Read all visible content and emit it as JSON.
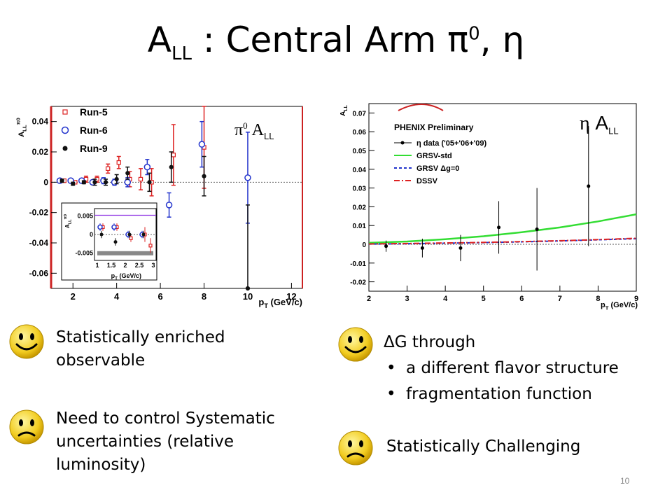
{
  "slide": {
    "title_main": "A",
    "title_sub": "LL",
    "title_rest": " : Central Arm π",
    "title_sup": "0",
    "title_end": ", η",
    "page_number": "10"
  },
  "colors": {
    "run5": "#dd2222",
    "run6": "#2233cc",
    "run9": "#111111",
    "grsv_std": "#33dd33",
    "grsv_dg0": "#2233cc",
    "dssv": "#dd2222",
    "frame_left_axis": "#cc2222"
  },
  "left_overlay": {
    "symbol": "π",
    "sup": "0",
    "label": " A",
    "sub": "LL"
  },
  "right_overlay": {
    "symbol": "η",
    "label": " A",
    "sub": "LL"
  },
  "chart_data": [
    {
      "type": "scatter",
      "ylabel": "A_LL^π0",
      "xlabel": "p_T (GeV/c)",
      "xlim": [
        1,
        12.5
      ],
      "ylim": [
        -0.07,
        0.05
      ],
      "xticks": [
        2,
        4,
        6,
        8,
        10,
        12
      ],
      "yticks": [
        -0.06,
        -0.04,
        -0.02,
        0,
        0.02,
        0.04
      ],
      "ytick_labels": [
        "-0.06",
        "-0.04",
        "-0.02",
        "0",
        "0.02",
        "0.04"
      ],
      "legend": [
        "Run-5",
        "Run-6",
        "Run-9"
      ],
      "series": [
        {
          "name": "Run-5",
          "marker": "open-square",
          "x": [
            1.6,
            2.1,
            2.6,
            3.1,
            3.6,
            4.1,
            4.6,
            5.1,
            5.6,
            6.6,
            8.0
          ],
          "y": [
            0.001,
            0.0,
            0.002,
            0.002,
            0.009,
            0.013,
            0.002,
            0.002,
            0.0,
            0.018,
            0.023
          ],
          "err": [
            0.001,
            0.001,
            0.002,
            0.002,
            0.003,
            0.004,
            0.005,
            0.007,
            0.009,
            0.02,
            0.027
          ]
        },
        {
          "name": "Run-6",
          "marker": "open-circle",
          "x": [
            1.4,
            1.9,
            2.4,
            2.9,
            3.4,
            3.9,
            4.5,
            5.4,
            6.4,
            7.9,
            10.0
          ],
          "y": [
            0.001,
            0.001,
            0.001,
            0.0,
            0.001,
            0.0,
            0.0,
            0.01,
            -0.015,
            0.025,
            0.003
          ],
          "err": [
            0.001,
            0.001,
            0.001,
            0.001,
            0.002,
            0.002,
            0.003,
            0.005,
            0.008,
            0.015,
            0.03
          ]
        },
        {
          "name": "Run-9",
          "marker": "filled-circle",
          "x": [
            1.5,
            2.0,
            2.5,
            3.0,
            3.5,
            4.0,
            4.5,
            5.5,
            6.5,
            8.0,
            10.0
          ],
          "y": [
            0.001,
            -0.001,
            0.0,
            0.0,
            0.0,
            0.002,
            0.006,
            0.0,
            0.01,
            0.004,
            -0.07
          ],
          "err": [
            0.001,
            0.001,
            0.001,
            0.002,
            0.002,
            0.003,
            0.004,
            0.006,
            0.01,
            0.013,
            0.055
          ]
        }
      ],
      "inset": {
        "xlabel": "p_T (GeV/c)",
        "ylabel": "A_LL^π0",
        "xlim": [
          0.9,
          3.1
        ],
        "ylim": [
          -0.007,
          0.007
        ],
        "xticks": [
          1,
          1.5,
          2,
          2.5,
          3
        ],
        "xtick_labels": [
          "1",
          "1.5",
          "2",
          "2.5",
          "3"
        ],
        "yticks": [
          -0.005,
          0,
          0.005
        ],
        "ytick_labels": [
          "-0.005",
          "0",
          "0.005"
        ],
        "series": [
          {
            "name": "Run-5",
            "x": [
              1.2,
              1.7,
              2.2,
              2.7,
              2.9
            ],
            "y": [
              0.002,
              0.002,
              -0.001,
              0.0,
              -0.003
            ],
            "err": [
              0.001,
              0.001,
              0.001,
              0.002,
              0.002
            ]
          },
          {
            "name": "Run-6",
            "x": [
              1.1,
              1.6,
              2.1,
              2.6
            ],
            "y": [
              0.002,
              0.002,
              0.0,
              0.0
            ],
            "err": [
              0.001,
              0.001,
              0.001,
              0.001
            ]
          },
          {
            "name": "Run-9",
            "x": [
              1.15,
              1.65,
              2.15,
              2.65
            ],
            "y": [
              0.0,
              -0.002,
              0.0,
              0.0
            ],
            "err": [
              0.001,
              0.001,
              0.001,
              0.001
            ]
          }
        ]
      }
    },
    {
      "type": "scatter",
      "ylabel": "A_LL",
      "xlabel": "p_T (GeV/c)",
      "xlim": [
        2,
        9
      ],
      "ylim": [
        -0.025,
        0.075
      ],
      "xticks": [
        2,
        3,
        4,
        5,
        6,
        7,
        8,
        9
      ],
      "yticks": [
        -0.02,
        -0.01,
        0,
        0.01,
        0.02,
        0.03,
        0.04,
        0.05,
        0.06,
        0.07
      ],
      "ytick_labels": [
        "-0.02",
        "-0.01",
        "0",
        "0.01",
        "0.02",
        "0.03",
        "0.04",
        "0.05",
        "0.06",
        "0.07"
      ],
      "header": "PHENIX Preliminary",
      "legend": [
        "η data ('05+'06+'09)",
        "GRSV-std",
        "GRSV Δg=0",
        "DSSV"
      ],
      "data": {
        "x": [
          2.45,
          3.4,
          4.4,
          5.4,
          6.4,
          7.75
        ],
        "y": [
          -0.001,
          -0.002,
          -0.002,
          0.009,
          0.008,
          0.031
        ],
        "err": [
          0.003,
          0.005,
          0.007,
          0.014,
          0.022,
          0.032
        ]
      },
      "curves": [
        {
          "name": "GRSV-std",
          "style": "solid",
          "x": [
            2,
            3,
            4,
            5,
            6,
            7,
            8,
            9
          ],
          "y": [
            0.0008,
            0.0015,
            0.0027,
            0.0043,
            0.0064,
            0.009,
            0.0122,
            0.016
          ]
        },
        {
          "name": "GRSV Δg=0",
          "style": "dashed",
          "x": [
            2,
            3,
            4,
            5,
            6,
            7,
            8,
            9
          ],
          "y": [
            0.0001,
            0.0003,
            0.0006,
            0.0009,
            0.0013,
            0.0018,
            0.0024,
            0.003
          ]
        },
        {
          "name": "DSSV",
          "style": "dash-dot",
          "x": [
            2,
            3,
            4,
            5,
            6,
            7,
            8,
            9
          ],
          "y": [
            0.0002,
            0.0004,
            0.0007,
            0.001,
            0.0014,
            0.0019,
            0.0025,
            0.0032
          ]
        }
      ]
    }
  ],
  "left_text": {
    "positive": "Statistically enriched observable",
    "negative": "Need to control Systematic uncertainties (relative luminosity)"
  },
  "right_text": {
    "positive_head": "ΔG through",
    "bullets": [
      "a different flavor structure",
      "fragmentation function"
    ],
    "negative": "Statistically Challenging"
  },
  "icons": {
    "happy": "smiley-happy-icon",
    "sad": "smiley-sad-icon"
  }
}
